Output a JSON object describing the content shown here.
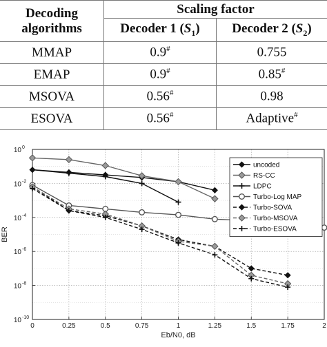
{
  "table": {
    "col1_header_line1": "Decoding",
    "col1_header_line2": "algorithms",
    "scaling_header": "Scaling factor",
    "dec1_label": "Decoder 1 (",
    "dec1_sym": "S",
    "dec1_sub": "1",
    "dec2_label": "Decoder 2 (",
    "dec2_sym": "S",
    "dec2_sub": "2",
    "close_paren": ")",
    "rows": [
      {
        "name": "MMAP",
        "s1": "0.9",
        "s1_mark": "#",
        "s2": "0.755",
        "s2_mark": ""
      },
      {
        "name": "EMAP",
        "s1": "0.9",
        "s1_mark": "#",
        "s2": "0.85",
        "s2_mark": "#"
      },
      {
        "name": "MSOVA",
        "s1": "0.56",
        "s1_mark": "#",
        "s2": "0.98",
        "s2_mark": ""
      },
      {
        "name": "ESOVA",
        "s1": "0.56",
        "s1_mark": "#",
        "s2": "Adaptive",
        "s2_mark": "#"
      }
    ]
  },
  "chart_data": {
    "type": "line",
    "xlabel": "Eb/N0, dB",
    "ylabel": "BER",
    "xlim": [
      0,
      2
    ],
    "ylim_log10": [
      -10,
      0
    ],
    "yscale": "log",
    "xticks": [
      "0",
      "0.25",
      "0.5",
      "0.75",
      "1",
      "1.25",
      "1.5",
      "1.75",
      "2"
    ],
    "yticks": [
      {
        "exp": 0,
        "label": "10",
        "sup": "0"
      },
      {
        "exp": -2,
        "label": "10",
        "sup": "-2"
      },
      {
        "exp": -4,
        "label": "10",
        "sup": "-4"
      },
      {
        "exp": -6,
        "label": "10",
        "sup": "-6"
      },
      {
        "exp": -8,
        "label": "10",
        "sup": "-8"
      },
      {
        "exp": -10,
        "label": "10",
        "sup": "-10"
      }
    ],
    "grid": true,
    "legend_position": "right",
    "series": [
      {
        "name": "uncoded",
        "marker": "diamond",
        "dash": false,
        "color": "#111111",
        "x": [
          0,
          0.25,
          0.5,
          0.75,
          1,
          1.25
        ],
        "log10y": [
          -1.2,
          -1.35,
          -1.5,
          -1.65,
          -1.9,
          -2.4
        ]
      },
      {
        "name": "RS-CC",
        "marker": "diamond-gray",
        "dash": false,
        "color": "#666666",
        "x": [
          0,
          0.25,
          0.5,
          0.75,
          1,
          1.25
        ],
        "log10y": [
          -0.5,
          -0.6,
          -0.95,
          -1.55,
          -1.9,
          -2.9
        ]
      },
      {
        "name": "LDPC",
        "marker": "plus",
        "dash": false,
        "color": "#111111",
        "x": [
          0,
          0.25,
          0.5,
          0.75,
          1
        ],
        "log10y": [
          -1.2,
          -1.4,
          -1.6,
          -2.0,
          -3.1
        ]
      },
      {
        "name": "Turbo-Log MAP",
        "marker": "circle",
        "dash": false,
        "color": "#555555",
        "x": [
          0,
          0.25,
          0.5,
          0.75,
          1,
          1.25,
          1.5,
          1.75,
          2
        ],
        "log10y": [
          -2.1,
          -3.3,
          -3.5,
          -3.7,
          -3.85,
          -4.1,
          -4.2,
          -4.35,
          -4.6
        ]
      },
      {
        "name": "Turbo-SOVA",
        "marker": "diamond",
        "dash": true,
        "color": "#111111",
        "x": [
          0,
          0.25,
          0.5,
          0.75,
          1,
          1.25,
          1.5,
          1.75
        ],
        "log10y": [
          -2.2,
          -3.6,
          -3.9,
          -4.5,
          -5.3,
          -5.7,
          -7.0,
          -7.4
        ]
      },
      {
        "name": "Turbo-MSOVA",
        "marker": "diamond-gray",
        "dash": true,
        "color": "#666666",
        "x": [
          0,
          0.25,
          0.5,
          0.75,
          1,
          1.25,
          1.5,
          1.75
        ],
        "log10y": [
          -2.2,
          -3.5,
          -3.8,
          -4.5,
          -5.4,
          -5.7,
          -7.4,
          -7.9
        ]
      },
      {
        "name": "Turbo-ESOVA",
        "marker": "plus",
        "dash": true,
        "color": "#111111",
        "x": [
          0,
          0.25,
          0.5,
          0.75,
          1,
          1.25,
          1.5,
          1.75
        ],
        "log10y": [
          -2.3,
          -3.6,
          -4.0,
          -4.7,
          -5.5,
          -6.2,
          -7.6,
          -8.1
        ]
      }
    ]
  }
}
